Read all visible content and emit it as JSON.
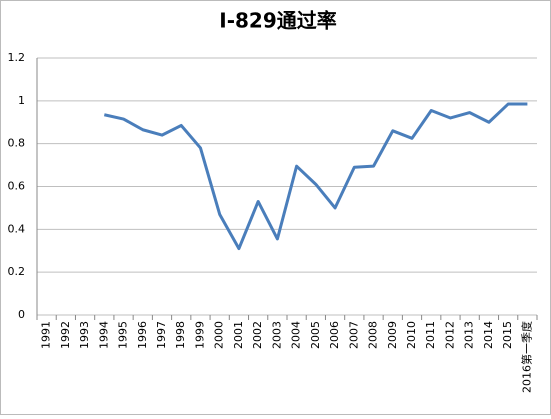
{
  "chart_data": {
    "type": "line",
    "title": "I-829通过率",
    "categories": [
      "1991",
      "1992",
      "1993",
      "1994",
      "1995",
      "1996",
      "1997",
      "1998",
      "1999",
      "2000",
      "2001",
      "2002",
      "2003",
      "2004",
      "2005",
      "2006",
      "2007",
      "2008",
      "2009",
      "2010",
      "2011",
      "2012",
      "2013",
      "2014",
      "2015",
      "2016第一季度"
    ],
    "series": [
      {
        "name": "I-829通过率",
        "color": "#4a7ebb",
        "values": [
          null,
          null,
          null,
          0.935,
          0.915,
          0.865,
          0.84,
          0.885,
          0.78,
          0.47,
          0.31,
          0.53,
          0.355,
          0.695,
          0.61,
          0.5,
          0.69,
          0.695,
          0.86,
          0.825,
          0.955,
          0.92,
          0.945,
          0.9,
          0.985,
          0.985
        ]
      }
    ],
    "ylim": [
      0,
      1.2
    ],
    "yticks": [
      0,
      0.2,
      0.4,
      0.6,
      0.8,
      1,
      1.2
    ],
    "grid": true,
    "legend": false
  }
}
